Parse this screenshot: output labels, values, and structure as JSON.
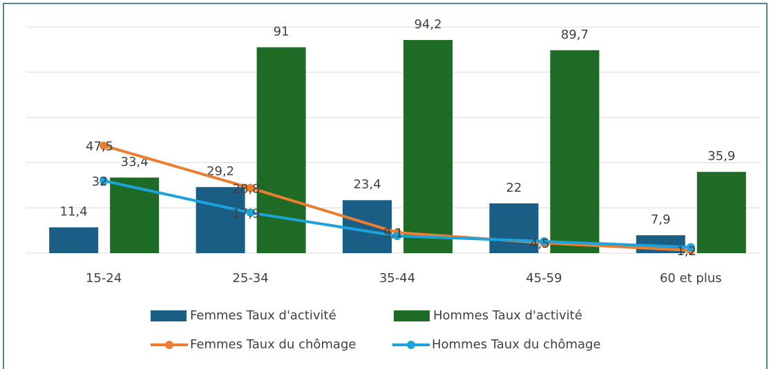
{
  "chart_data": {
    "type": "bar",
    "categories": [
      "15-24",
      "25-34",
      "35-44",
      "45-59",
      "60 et plus"
    ],
    "series": [
      {
        "name": "Femmes Taux d'activité",
        "type": "bar",
        "color": "#1a5e85",
        "values": [
          11.4,
          29.2,
          23.4,
          22,
          7.9
        ],
        "value_labels": [
          "11,4",
          "29,2",
          "23,4",
          "22",
          "7,9"
        ]
      },
      {
        "name": "Hommes Taux d'activité",
        "type": "bar",
        "color": "#1d6b24",
        "values": [
          33.4,
          91,
          94.2,
          89.7,
          35.9
        ],
        "value_labels": [
          "33,4",
          "91",
          "94,2",
          "89,7",
          "35,9"
        ]
      },
      {
        "name": "Femmes Taux du chômage",
        "type": "line",
        "color": "#ed7d31",
        "values": [
          47.5,
          28.8,
          9.1,
          4.5,
          1.2
        ],
        "value_labels": [
          "47,5",
          "28,8",
          "9,1",
          "4,5",
          "1,2"
        ]
      },
      {
        "name": "Hommes Taux du chômage",
        "type": "line",
        "color": "#1ca3dc",
        "values": [
          32,
          17.9,
          7.6,
          5.2,
          2.6
        ],
        "value_labels": [
          "32",
          "17,9",
          null,
          null,
          null
        ]
      }
    ],
    "ylim": [
      0,
      100
    ],
    "yticks": [
      0,
      20,
      40,
      60,
      80,
      100
    ],
    "grid": true
  }
}
